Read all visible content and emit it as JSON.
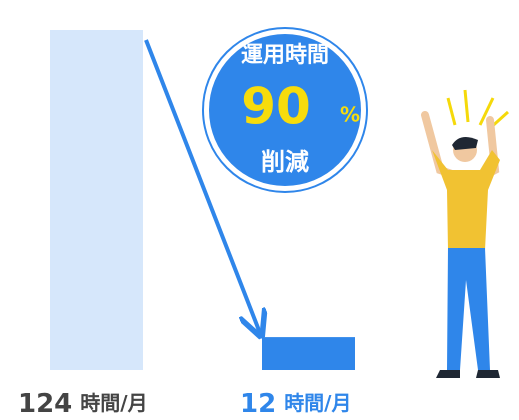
{
  "chart_data": {
    "type": "bar",
    "values": [
      124,
      12
    ],
    "unit": "時間/月",
    "colors": [
      "#d6e7fb",
      "#2f86ea"
    ],
    "label_colors": [
      "#444444",
      "#2f86ea"
    ],
    "badge": {
      "title": "運用時間",
      "value": 90,
      "unit": "%",
      "caption": "削減",
      "color": "#2f86ea",
      "value_color": "#f7dc0c"
    }
  }
}
